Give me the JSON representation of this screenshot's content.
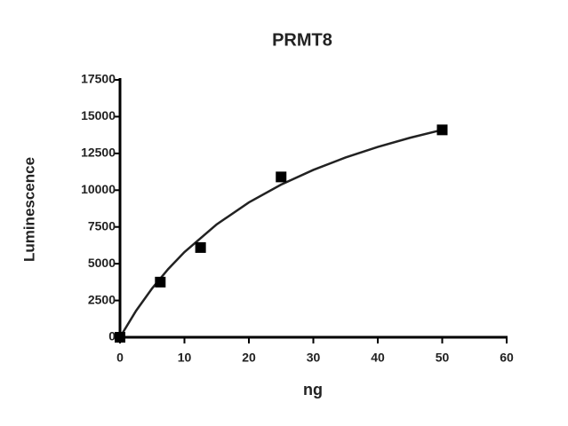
{
  "chart_data": {
    "type": "scatter",
    "title": "PRMT8",
    "xlabel": "ng",
    "ylabel": "Luminescence",
    "x": [
      0,
      6.25,
      12.5,
      25,
      50
    ],
    "values": [
      0,
      3750,
      6100,
      10900,
      14100
    ],
    "color": "#000000",
    "fit": {
      "x": [
        0,
        2.5,
        5,
        7.5,
        10,
        15,
        20,
        25,
        30,
        35,
        40,
        45,
        50
      ],
      "values": [
        0,
        1803,
        3333,
        4648,
        5789,
        7674,
        9167,
        10377,
        11379,
        12222,
        12941,
        13562,
        14103
      ]
    },
    "xlim": [
      0,
      60
    ],
    "xticks": [
      0,
      10,
      20,
      30,
      40,
      50,
      60
    ],
    "ylim": [
      0,
      17500
    ],
    "yticks": [
      0,
      2500,
      5000,
      7500,
      10000,
      12500,
      15000,
      17500
    ]
  }
}
